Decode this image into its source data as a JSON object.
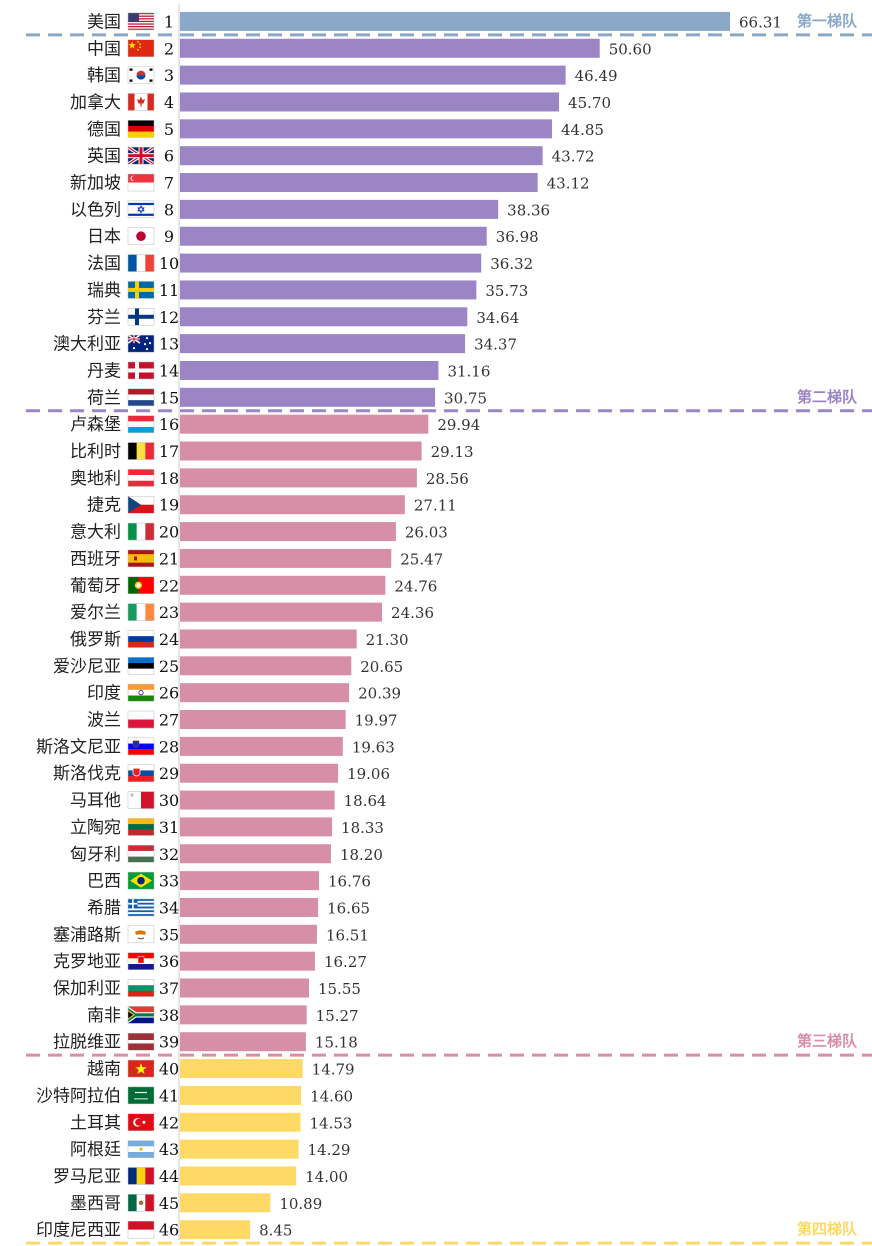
{
  "chart_data": {
    "type": "bar",
    "orientation": "horizontal",
    "xlim": [
      0,
      66.31
    ],
    "tiers": [
      {
        "label": "第一梯队",
        "color": "#8BA8C8",
        "last_rank": 1
      },
      {
        "label": "第二梯队",
        "color": "#9C85C5",
        "last_rank": 15
      },
      {
        "label": "第三梯队",
        "color": "#D68FA6",
        "last_rank": 39
      },
      {
        "label": "第四梯队",
        "color": "#FFD966",
        "last_rank": 46
      }
    ],
    "rows": [
      {
        "country": "美国",
        "rank": "1",
        "value": 66.31,
        "label": "66.31",
        "tier": 0,
        "flag": "us"
      },
      {
        "country": "中国",
        "rank": "2",
        "value": 50.6,
        "label": "50.60",
        "tier": 1,
        "flag": "cn"
      },
      {
        "country": "韩国",
        "rank": "3",
        "value": 46.49,
        "label": "46.49",
        "tier": 1,
        "flag": "kr"
      },
      {
        "country": "加拿大",
        "rank": "4",
        "value": 45.7,
        "label": "45.70",
        "tier": 1,
        "flag": "ca"
      },
      {
        "country": "德国",
        "rank": "5",
        "value": 44.85,
        "label": "44.85",
        "tier": 1,
        "flag": "de"
      },
      {
        "country": "英国",
        "rank": "6",
        "value": 43.72,
        "label": "43.72",
        "tier": 1,
        "flag": "gb"
      },
      {
        "country": "新加坡",
        "rank": "7",
        "value": 43.12,
        "label": "43.12",
        "tier": 1,
        "flag": "sg"
      },
      {
        "country": "以色列",
        "rank": "8",
        "value": 38.36,
        "label": "38.36",
        "tier": 1,
        "flag": "il"
      },
      {
        "country": "日本",
        "rank": "9",
        "value": 36.98,
        "label": "36.98",
        "tier": 1,
        "flag": "jp"
      },
      {
        "country": "法国",
        "rank": "10",
        "value": 36.32,
        "label": "36.32",
        "tier": 1,
        "flag": "fr"
      },
      {
        "country": "瑞典",
        "rank": "11",
        "value": 35.73,
        "label": "35.73",
        "tier": 1,
        "flag": "se"
      },
      {
        "country": "芬兰",
        "rank": "12",
        "value": 34.64,
        "label": "34.64",
        "tier": 1,
        "flag": "fi"
      },
      {
        "country": "澳大利亚",
        "rank": "13",
        "value": 34.37,
        "label": "34.37",
        "tier": 1,
        "flag": "au"
      },
      {
        "country": "丹麦",
        "rank": "14",
        "value": 31.16,
        "label": "31.16",
        "tier": 1,
        "flag": "dk"
      },
      {
        "country": "荷兰",
        "rank": "15",
        "value": 30.75,
        "label": "30.75",
        "tier": 1,
        "flag": "nl"
      },
      {
        "country": "卢森堡",
        "rank": "16",
        "value": 29.94,
        "label": "29.94",
        "tier": 2,
        "flag": "lu"
      },
      {
        "country": "比利时",
        "rank": "17",
        "value": 29.13,
        "label": "29.13",
        "tier": 2,
        "flag": "be"
      },
      {
        "country": "奥地利",
        "rank": "18",
        "value": 28.56,
        "label": "28.56",
        "tier": 2,
        "flag": "at"
      },
      {
        "country": "捷克",
        "rank": "19",
        "value": 27.11,
        "label": "27.11",
        "tier": 2,
        "flag": "cz"
      },
      {
        "country": "意大利",
        "rank": "20",
        "value": 26.03,
        "label": "26.03",
        "tier": 2,
        "flag": "it"
      },
      {
        "country": "西班牙",
        "rank": "21",
        "value": 25.47,
        "label": "25.47",
        "tier": 2,
        "flag": "es"
      },
      {
        "country": "葡萄牙",
        "rank": "22",
        "value": 24.76,
        "label": "24.76",
        "tier": 2,
        "flag": "pt"
      },
      {
        "country": "爱尔兰",
        "rank": "23",
        "value": 24.36,
        "label": "24.36",
        "tier": 2,
        "flag": "ie"
      },
      {
        "country": "俄罗斯",
        "rank": "24",
        "value": 21.3,
        "label": "21.30",
        "tier": 2,
        "flag": "ru"
      },
      {
        "country": "爱沙尼亚",
        "rank": "25",
        "value": 20.65,
        "label": "20.65",
        "tier": 2,
        "flag": "ee"
      },
      {
        "country": "印度",
        "rank": "26",
        "value": 20.39,
        "label": "20.39",
        "tier": 2,
        "flag": "in"
      },
      {
        "country": "波兰",
        "rank": "27",
        "value": 19.97,
        "label": "19.97",
        "tier": 2,
        "flag": "pl"
      },
      {
        "country": "斯洛文尼亚",
        "rank": "28",
        "value": 19.63,
        "label": "19.63",
        "tier": 2,
        "flag": "si"
      },
      {
        "country": "斯洛伐克",
        "rank": "29",
        "value": 19.06,
        "label": "19.06",
        "tier": 2,
        "flag": "sk"
      },
      {
        "country": "马耳他",
        "rank": "30",
        "value": 18.64,
        "label": "18.64",
        "tier": 2,
        "flag": "mt"
      },
      {
        "country": "立陶宛",
        "rank": "31",
        "value": 18.33,
        "label": "18.33",
        "tier": 2,
        "flag": "lt"
      },
      {
        "country": "匈牙利",
        "rank": "32",
        "value": 18.2,
        "label": "18.20",
        "tier": 2,
        "flag": "hu"
      },
      {
        "country": "巴西",
        "rank": "33",
        "value": 16.76,
        "label": "16.76",
        "tier": 2,
        "flag": "br"
      },
      {
        "country": "希腊",
        "rank": "34",
        "value": 16.65,
        "label": "16.65",
        "tier": 2,
        "flag": "gr"
      },
      {
        "country": "塞浦路斯",
        "rank": "35",
        "value": 16.51,
        "label": "16.51",
        "tier": 2,
        "flag": "cy"
      },
      {
        "country": "克罗地亚",
        "rank": "36",
        "value": 16.27,
        "label": "16.27",
        "tier": 2,
        "flag": "hr"
      },
      {
        "country": "保加利亚",
        "rank": "37",
        "value": 15.55,
        "label": "15.55",
        "tier": 2,
        "flag": "bg"
      },
      {
        "country": "南非",
        "rank": "38",
        "value": 15.27,
        "label": "15.27",
        "tier": 2,
        "flag": "za"
      },
      {
        "country": "拉脱维亚",
        "rank": "39",
        "value": 15.18,
        "label": "15.18",
        "tier": 2,
        "flag": "lv"
      },
      {
        "country": "越南",
        "rank": "40",
        "value": 14.79,
        "label": "14.79",
        "tier": 3,
        "flag": "vn"
      },
      {
        "country": "沙特阿拉伯",
        "rank": "41",
        "value": 14.6,
        "label": "14.60",
        "tier": 3,
        "flag": "sa"
      },
      {
        "country": "土耳其",
        "rank": "42",
        "value": 14.53,
        "label": "14.53",
        "tier": 3,
        "flag": "tr"
      },
      {
        "country": "阿根廷",
        "rank": "43",
        "value": 14.29,
        "label": "14.29",
        "tier": 3,
        "flag": "ar"
      },
      {
        "country": "罗马尼亚",
        "rank": "44",
        "value": 14.0,
        "label": "14.00",
        "tier": 3,
        "flag": "ro"
      },
      {
        "country": "墨西哥",
        "rank": "45",
        "value": 10.89,
        "label": "10.89",
        "tier": 3,
        "flag": "mx"
      },
      {
        "country": "印度尼西亚",
        "rank": "46",
        "value": 8.45,
        "label": "8.45",
        "tier": 3,
        "flag": "id"
      }
    ]
  }
}
